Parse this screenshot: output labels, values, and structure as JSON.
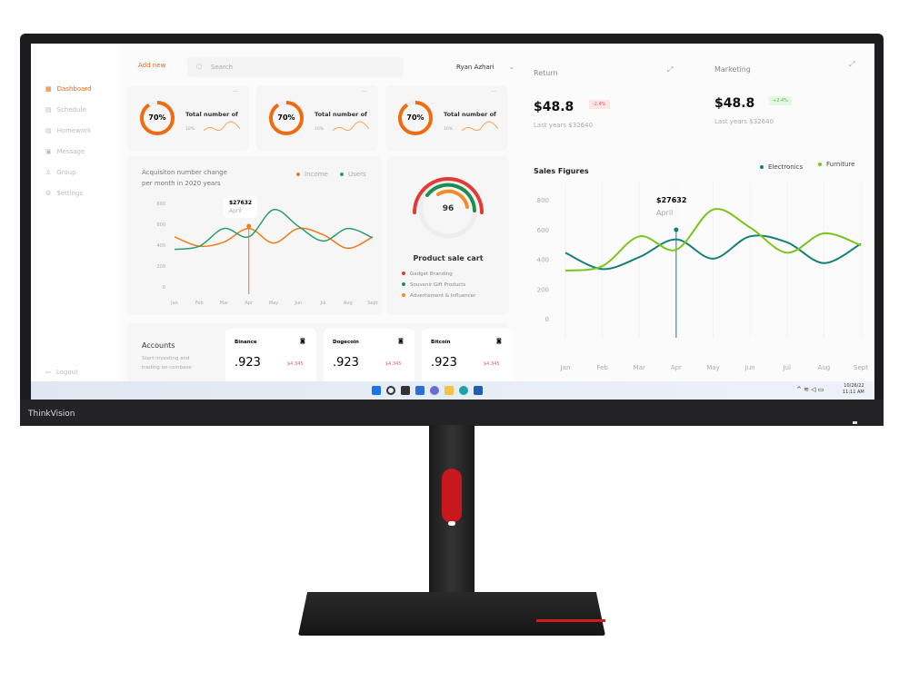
{
  "brand": "ThinkVision",
  "sidebar": {
    "items": [
      {
        "label": "Dashboard",
        "active": true
      },
      {
        "label": "Schedule"
      },
      {
        "label": "Homework"
      },
      {
        "label": "Message"
      },
      {
        "label": "Group"
      },
      {
        "label": "Settings"
      }
    ],
    "logout": "Logout"
  },
  "header": {
    "add_new": "Add new",
    "search_placeholder": "Search",
    "user": "Ryan Azhari"
  },
  "stat_cards": [
    {
      "percent": "70%",
      "title": "Total number of",
      "sub": "10%",
      "progress": 0.7
    },
    {
      "percent": "70%",
      "title": "Total number of",
      "sub": "10%",
      "progress": 0.7
    },
    {
      "percent": "70%",
      "title": "Total number of",
      "sub": "10%",
      "progress": 0.7
    }
  ],
  "acquisition": {
    "title_line1": "Acquisiton number change",
    "title_line2": "per month in 2020 years",
    "tooltip_value": "$27632",
    "tooltip_label": "April"
  },
  "product": {
    "value": "96",
    "title": "Product sale cart",
    "legend": [
      {
        "label": "Gadget Branding",
        "color": "#e53935"
      },
      {
        "label": "Souvenir Gift Products",
        "color": "#1e8e4e"
      },
      {
        "label": "Advertisment & Influencer",
        "color": "#f28c28"
      }
    ]
  },
  "accounts": {
    "title": "Accounts",
    "sub1": "Start investing and",
    "sub2": "trading on coinbase",
    "coins": [
      {
        "name": "Binance",
        "value": ".923",
        "change": "$4,345"
      },
      {
        "name": "Dogecoin",
        "value": ".923",
        "change": "$4,345"
      },
      {
        "name": "Bitcoin",
        "value": ".923",
        "change": "$4,345"
      }
    ]
  },
  "return": {
    "title": "Return",
    "value": "$48.8",
    "badge": "-2.4%",
    "last": "Last years $32640"
  },
  "marketing": {
    "title": "Marketing",
    "value": "$48.8",
    "badge": "+2.4%",
    "last": "Last years $32640"
  },
  "sales": {
    "title": "Sales Figures",
    "tooltip_value": "$27632",
    "tooltip_label": "April"
  },
  "taskbar": {
    "date": "10/26/22",
    "time": "11:11 AM"
  },
  "chart_data": [
    {
      "type": "line",
      "categories": [
        "Jan",
        "Feb",
        "Mar",
        "Apr",
        "May",
        "Jun",
        "Jul",
        "Aug",
        "Sept"
      ],
      "yticks": [
        "800",
        "600",
        "400",
        "200",
        "0"
      ],
      "ylim": [
        0,
        800
      ],
      "legend_placement": "top-right",
      "series": [
        {
          "name": "Income",
          "color": "#f07b1a",
          "values": [
            480,
            390,
            430,
            560,
            420,
            560,
            500,
            370,
            480
          ]
        },
        {
          "name": "Users",
          "color": "#2a9d6a",
          "values": [
            360,
            390,
            560,
            480,
            740,
            580,
            440,
            560,
            470
          ]
        }
      ]
    },
    {
      "type": "line",
      "categories": [
        "Jan",
        "Feb",
        "Mar",
        "Apr",
        "May",
        "Jun",
        "Jul",
        "Aug",
        "Sept"
      ],
      "yticks": [
        "800",
        "600",
        "400",
        "200",
        "0"
      ],
      "ylim": [
        0,
        800
      ],
      "legend_placement": "top-right",
      "series": [
        {
          "name": "Electronics",
          "color": "#167f7a",
          "values": [
            450,
            340,
            420,
            540,
            410,
            560,
            520,
            380,
            510
          ]
        },
        {
          "name": "Furniture",
          "color": "#7ac51c",
          "values": [
            330,
            360,
            560,
            470,
            740,
            620,
            450,
            580,
            500
          ]
        }
      ]
    }
  ]
}
